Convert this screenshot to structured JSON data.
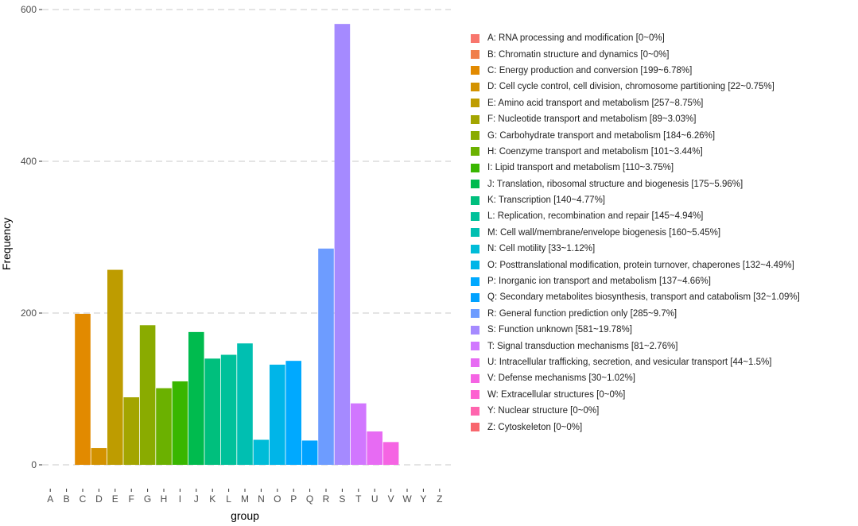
{
  "chart_data": {
    "type": "bar",
    "xlabel": "group",
    "ylabel": "Frequency",
    "ylim": [
      0,
      600
    ],
    "yticks": [
      0,
      200,
      400,
      600
    ],
    "grid": "horizontal dashed",
    "legend_position": "right",
    "categories": [
      "A",
      "B",
      "C",
      "D",
      "E",
      "F",
      "G",
      "H",
      "I",
      "J",
      "K",
      "L",
      "M",
      "N",
      "O",
      "P",
      "Q",
      "R",
      "S",
      "T",
      "U",
      "V",
      "W",
      "Y",
      "Z"
    ],
    "values": [
      0,
      0,
      199,
      22,
      257,
      89,
      184,
      101,
      110,
      175,
      140,
      145,
      160,
      33,
      132,
      137,
      32,
      285,
      581,
      81,
      44,
      30,
      0,
      0,
      0
    ],
    "colors": [
      "#F8766D",
      "#F07F4A",
      "#E28A00",
      "#D39200",
      "#BE9C00",
      "#A3A500",
      "#8AAB00",
      "#6BB100",
      "#39B600",
      "#00BB4E",
      "#00BF7D",
      "#00C19A",
      "#00BFB1",
      "#00BCD8",
      "#00B5E8",
      "#00A9FF",
      "#00A2FF",
      "#6D9CFF",
      "#A58AFF",
      "#D177FF",
      "#E76BF3",
      "#F564E3",
      "#FD61D1",
      "#FF65AE",
      "#F8666D"
    ],
    "legend": [
      "A: RNA processing and modification [0~0%]",
      "B: Chromatin structure and dynamics [0~0%]",
      "C: Energy production and conversion [199~6.78%]",
      "D: Cell cycle control, cell division, chromosome partitioning [22~0.75%]",
      "E: Amino acid transport and metabolism [257~8.75%]",
      "F: Nucleotide transport and metabolism [89~3.03%]",
      "G: Carbohydrate transport and metabolism [184~6.26%]",
      "H: Coenzyme transport and metabolism [101~3.44%]",
      "I: Lipid transport and metabolism [110~3.75%]",
      "J: Translation, ribosomal structure and biogenesis [175~5.96%]",
      "K: Transcription [140~4.77%]",
      "L: Replication, recombination and repair [145~4.94%]",
      "M: Cell wall/membrane/envelope biogenesis [160~5.45%]",
      "N: Cell motility [33~1.12%]",
      "O: Posttranslational modification, protein turnover, chaperones [132~4.49%]",
      "P: Inorganic ion transport and metabolism [137~4.66%]",
      "Q: Secondary metabolites biosynthesis, transport and catabolism [32~1.09%]",
      "R: General function prediction only [285~9.7%]",
      "S: Function unknown [581~19.78%]",
      "T: Signal transduction mechanisms [81~2.76%]",
      "U: Intracellular trafficking, secretion, and vesicular transport [44~1.5%]",
      "V: Defense mechanisms [30~1.02%]",
      "W: Extracellular structures [0~0%]",
      "Y: Nuclear structure [0~0%]",
      "Z: Cytoskeleton [0~0%]"
    ]
  }
}
